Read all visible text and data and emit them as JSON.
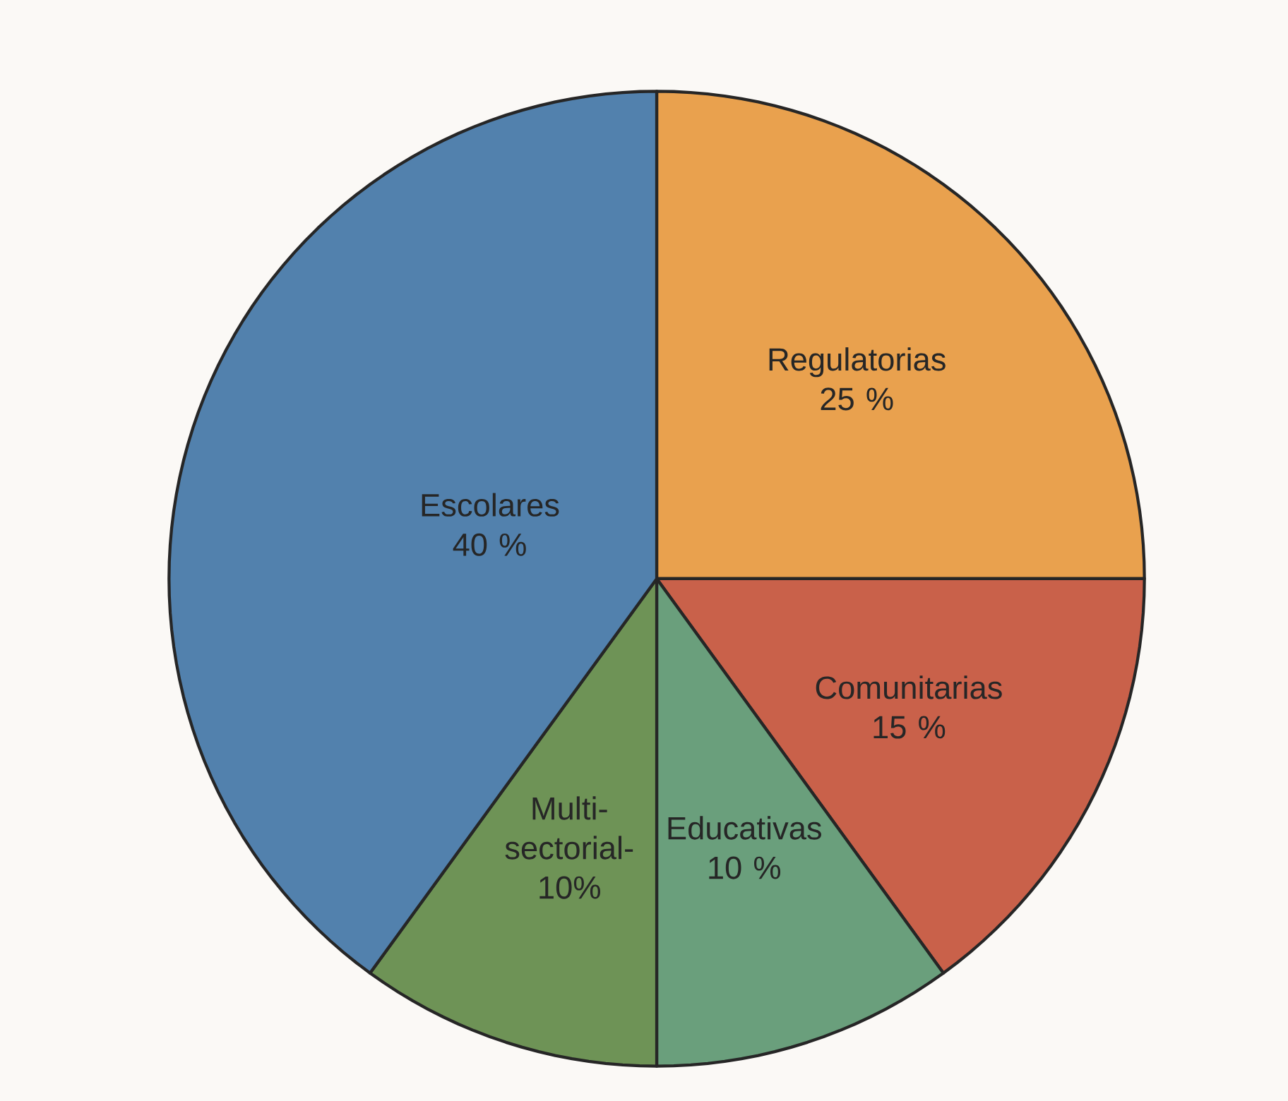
{
  "chart_data": {
    "type": "pie",
    "categories": [
      "Regulatorias",
      "Comunitarias",
      "Educativas",
      "Multi-sectorial-",
      "Escolares"
    ],
    "values": [
      25,
      15,
      10,
      10,
      40
    ],
    "value_labels": [
      "25 %",
      "15 %",
      "10 %",
      "10%",
      "40 %"
    ],
    "colors": [
      "#e9a14e",
      "#c9614a",
      "#6a9f7c",
      "#6e9356",
      "#5281ad"
    ]
  }
}
